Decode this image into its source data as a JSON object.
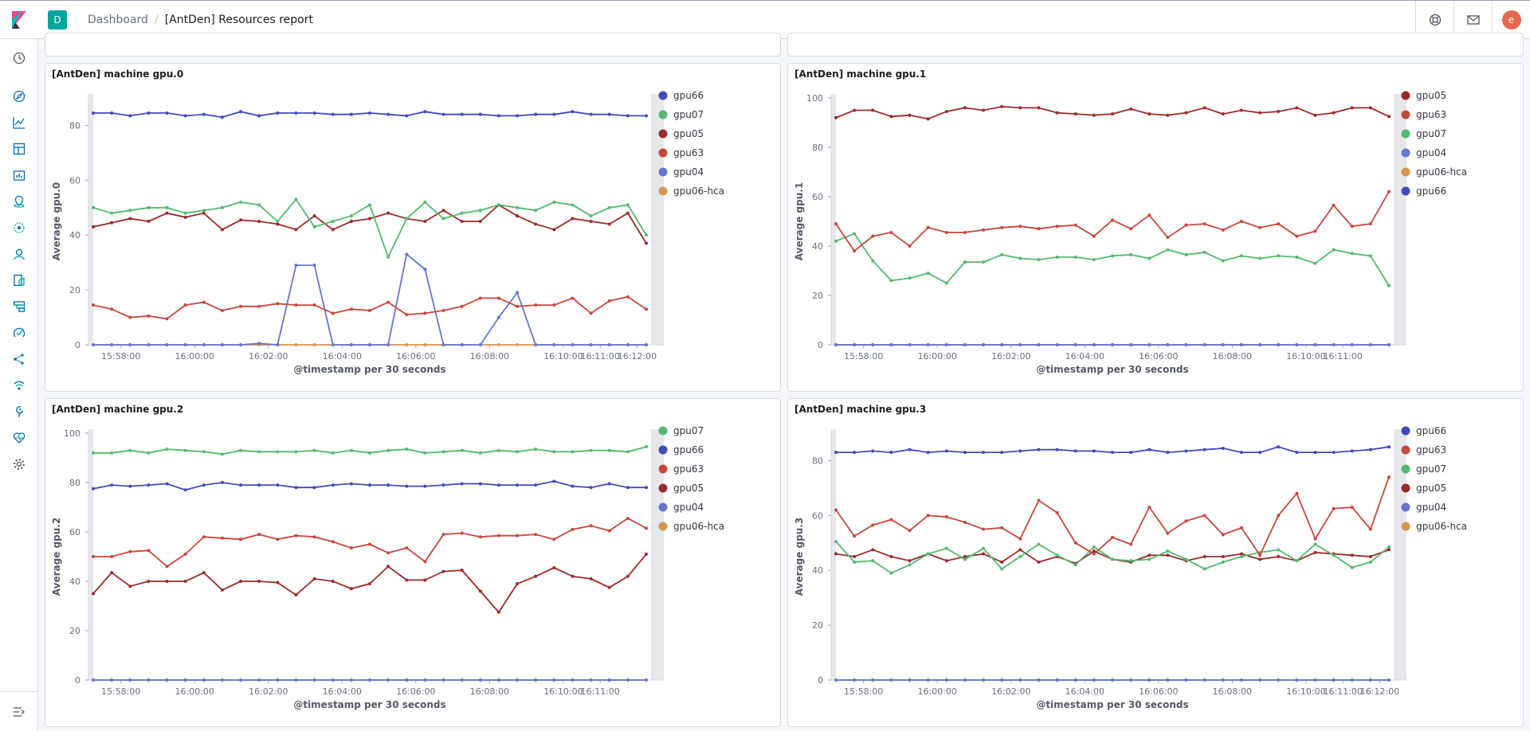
{
  "header": {
    "space_initial": "D",
    "breadcrumb_root": "Dashboard",
    "breadcrumb_current": "[AntDen] Resources report",
    "user_initial": "e"
  },
  "colors": {
    "gpu66": "#3f4bb8",
    "gpu07": "#54b96f",
    "gpu05": "#9c2a2a",
    "gpu63": "#c8473b",
    "gpu04": "#6377d0",
    "gpu06-hca": "#d6954e"
  },
  "chart_data": [
    {
      "type": "line",
      "title": "[AntDen] machine gpu.0",
      "ylabel": "Average gpu.0",
      "xlabel": "@timestamp per 30 seconds",
      "ylim": [
        0,
        90
      ],
      "yticks": [
        0,
        20,
        40,
        60,
        80
      ],
      "xticks": [
        {
          "t": 1.5,
          "label": "15:58:00"
        },
        {
          "t": 5.5,
          "label": "16:00:00"
        },
        {
          "t": 9.5,
          "label": "16:02:00"
        },
        {
          "t": 13.5,
          "label": "16:04:00"
        },
        {
          "t": 17.5,
          "label": "16:06:00"
        },
        {
          "t": 21.5,
          "label": "16:08:00"
        },
        {
          "t": 25.5,
          "label": "16:10:00"
        },
        {
          "t": 27.5,
          "label": "16:11:00"
        },
        {
          "t": 29.5,
          "label": "16:12:00"
        }
      ],
      "series": [
        {
          "name": "gpu66",
          "values": [
            84.5,
            84.5,
            83.5,
            84.5,
            84.5,
            83.5,
            84,
            83,
            85,
            83.5,
            84.5,
            84.5,
            84.5,
            84,
            84,
            84.5,
            84,
            83.5,
            85,
            84,
            84,
            84,
            83.5,
            83.5,
            84,
            84,
            85,
            84,
            84,
            83.5,
            83.5
          ]
        },
        {
          "name": "gpu07",
          "values": [
            50,
            48,
            49,
            50,
            50,
            48,
            49,
            50,
            52,
            51,
            45,
            53,
            43,
            45,
            47,
            51,
            32,
            46,
            52,
            46,
            48,
            49,
            51,
            50,
            49,
            52,
            51,
            47,
            50,
            51,
            40
          ]
        },
        {
          "name": "gpu05",
          "values": [
            43,
            44.5,
            46,
            45,
            48,
            46.5,
            48,
            42,
            45.5,
            45,
            44,
            42,
            47,
            42,
            45,
            46,
            48,
            46,
            45,
            49,
            45,
            45,
            51,
            47,
            44,
            42,
            46,
            45,
            44,
            48,
            37
          ]
        },
        {
          "name": "gpu63",
          "values": [
            14.5,
            13,
            10,
            10.5,
            9.5,
            14.5,
            15.5,
            12.5,
            14,
            14,
            15,
            14.5,
            14.5,
            11.5,
            13,
            12.5,
            15.5,
            11,
            11.5,
            12.5,
            14,
            17,
            17,
            14,
            14.5,
            14.5,
            17,
            11.5,
            16,
            17.5,
            13
          ]
        },
        {
          "name": "gpu04",
          "values": [
            0,
            0,
            0,
            0,
            0,
            0,
            0,
            0,
            0,
            0.5,
            0,
            29,
            29,
            0,
            0,
            0,
            0,
            33,
            27.5,
            0,
            0,
            0,
            10,
            19,
            0,
            0,
            0,
            0,
            0,
            0,
            0
          ]
        },
        {
          "name": "gpu06-hca",
          "values": [
            0,
            0,
            0,
            0,
            0,
            0,
            0,
            0,
            0,
            0,
            0,
            0,
            0,
            0,
            0,
            0,
            0,
            0,
            0,
            0,
            0,
            0,
            0,
            0,
            0,
            0,
            0,
            0,
            0,
            0,
            0
          ]
        }
      ]
    },
    {
      "type": "line",
      "title": "[AntDen] machine gpu.1",
      "ylabel": "Average gpu.1",
      "xlabel": "@timestamp per 30 seconds",
      "ylim": [
        0,
        100
      ],
      "yticks": [
        0,
        20,
        40,
        60,
        80,
        100
      ],
      "xticks": [
        {
          "t": 1.5,
          "label": "15:58:00"
        },
        {
          "t": 5.5,
          "label": "16:00:00"
        },
        {
          "t": 9.5,
          "label": "16:02:00"
        },
        {
          "t": 13.5,
          "label": "16:04:00"
        },
        {
          "t": 17.5,
          "label": "16:06:00"
        },
        {
          "t": 21.5,
          "label": "16:08:00"
        },
        {
          "t": 25.5,
          "label": "16:10:00"
        },
        {
          "t": 27.5,
          "label": "16:11:00"
        }
      ],
      "series": [
        {
          "name": "gpu05",
          "values": [
            92,
            95,
            95,
            92.5,
            93,
            91.5,
            94.5,
            96,
            95,
            96.5,
            96,
            96,
            94,
            93.5,
            93,
            93.5,
            95.5,
            93.5,
            93,
            94,
            96,
            93.5,
            95,
            94,
            94.5,
            96,
            93,
            94,
            96,
            96,
            92.5
          ]
        },
        {
          "name": "gpu63",
          "values": [
            49,
            38,
            44,
            45.5,
            40,
            47.5,
            45.5,
            45.5,
            46.5,
            47.5,
            48,
            47,
            48,
            48.5,
            44,
            50.5,
            47,
            52.5,
            43.5,
            48.5,
            49,
            46.5,
            50,
            47.5,
            49,
            44,
            46,
            56.5,
            48,
            49,
            62
          ]
        },
        {
          "name": "gpu07",
          "values": [
            42,
            45,
            34,
            26,
            27,
            29,
            25,
            33.5,
            33.5,
            36.5,
            35,
            34.5,
            35.5,
            35.5,
            34.5,
            36,
            36.5,
            35,
            38.5,
            36.5,
            37.5,
            34,
            36,
            35,
            36,
            35.5,
            33,
            38.5,
            37,
            36,
            24
          ]
        },
        {
          "name": "gpu04",
          "values": [
            0,
            0,
            0,
            0,
            0,
            0,
            0,
            0,
            0,
            0,
            0,
            0,
            0,
            0,
            0,
            0,
            0,
            0,
            0,
            0,
            0,
            0,
            0,
            0,
            0,
            0,
            0,
            0,
            0,
            0,
            0
          ]
        },
        {
          "name": "gpu06-hca",
          "values": [
            0,
            0,
            0,
            0,
            0,
            0,
            0,
            0,
            0,
            0,
            0,
            0,
            0,
            0,
            0,
            0,
            0,
            0,
            0,
            0,
            0,
            0,
            0,
            0,
            0,
            0,
            0,
            0,
            0,
            0,
            0
          ]
        },
        {
          "name": "gpu66",
          "values": [
            0,
            0,
            0,
            0,
            0,
            0,
            0,
            0,
            0,
            0,
            0,
            0,
            0,
            0,
            0,
            0,
            0,
            0,
            0,
            0,
            0,
            0,
            0,
            0,
            0,
            0,
            0,
            0,
            0,
            0,
            0
          ]
        }
      ]
    },
    {
      "type": "line",
      "title": "[AntDen] machine gpu.2",
      "ylabel": "Average gpu.2",
      "xlabel": "@timestamp per 30 seconds",
      "ylim": [
        0,
        100
      ],
      "yticks": [
        0,
        20,
        40,
        60,
        80,
        100
      ],
      "xticks": [
        {
          "t": 1.5,
          "label": "15:58:00"
        },
        {
          "t": 5.5,
          "label": "16:00:00"
        },
        {
          "t": 9.5,
          "label": "16:02:00"
        },
        {
          "t": 13.5,
          "label": "16:04:00"
        },
        {
          "t": 17.5,
          "label": "16:06:00"
        },
        {
          "t": 21.5,
          "label": "16:08:00"
        },
        {
          "t": 25.5,
          "label": "16:10:00"
        },
        {
          "t": 27.5,
          "label": "16:11:00"
        }
      ],
      "series": [
        {
          "name": "gpu07",
          "values": [
            92,
            92,
            93,
            92,
            93.5,
            93,
            92.5,
            91.5,
            93,
            92.5,
            92.5,
            92.5,
            93,
            92,
            93,
            92,
            93,
            93.5,
            92,
            92.5,
            93,
            92,
            93,
            92.5,
            93.5,
            92.5,
            92.5,
            93,
            93,
            92.5,
            94.5
          ]
        },
        {
          "name": "gpu66",
          "values": [
            77.5,
            79,
            78.5,
            79,
            79.5,
            77,
            79,
            80,
            79,
            79,
            79,
            78,
            78,
            79,
            79.5,
            79,
            79,
            78.5,
            78.5,
            79,
            79.5,
            79.5,
            79,
            79,
            79,
            80.5,
            78.5,
            78,
            79.5,
            78,
            78
          ]
        },
        {
          "name": "gpu63",
          "values": [
            50,
            50,
            52,
            52.5,
            46,
            51,
            58,
            57.5,
            57,
            59,
            57,
            58.5,
            58,
            56,
            53.5,
            55,
            51.5,
            53.5,
            48,
            59,
            59.5,
            58,
            58.5,
            58.5,
            59,
            57,
            61,
            62.5,
            60.5,
            65.5,
            61.5
          ]
        },
        {
          "name": "gpu05",
          "values": [
            35,
            43.5,
            38,
            40,
            40,
            40,
            43.5,
            36.5,
            40,
            40,
            39.5,
            34.5,
            41,
            40,
            37,
            39,
            46,
            40.5,
            40.5,
            44,
            44.5,
            36,
            27.5,
            39,
            42,
            45.5,
            42,
            41,
            37.5,
            42,
            51
          ]
        },
        {
          "name": "gpu04",
          "values": [
            0,
            0,
            0,
            0,
            0,
            0,
            0,
            0,
            0,
            0,
            0,
            0,
            0,
            0,
            0,
            0,
            0,
            0,
            0,
            0,
            0,
            0,
            0,
            0,
            0,
            0,
            0,
            0,
            0,
            0,
            0
          ]
        },
        {
          "name": "gpu06-hca",
          "values": [
            0,
            0,
            0,
            0,
            0,
            0,
            0,
            0,
            0,
            0,
            0,
            0,
            0,
            0,
            0,
            0,
            0,
            0,
            0,
            0,
            0,
            0,
            0,
            0,
            0,
            0,
            0,
            0,
            0,
            0,
            0
          ]
        }
      ]
    },
    {
      "type": "line",
      "title": "[AntDen] machine gpu.3",
      "ylabel": "Average gpu.3",
      "xlabel": "@timestamp per 30 seconds",
      "ylim": [
        0,
        90
      ],
      "yticks": [
        0,
        20,
        40,
        60,
        80
      ],
      "xticks": [
        {
          "t": 1.5,
          "label": "15:58:00"
        },
        {
          "t": 5.5,
          "label": "16:00:00"
        },
        {
          "t": 9.5,
          "label": "16:02:00"
        },
        {
          "t": 13.5,
          "label": "16:04:00"
        },
        {
          "t": 17.5,
          "label": "16:06:00"
        },
        {
          "t": 21.5,
          "label": "16:08:00"
        },
        {
          "t": 25.5,
          "label": "16:10:00"
        },
        {
          "t": 27.5,
          "label": "16:11:00"
        },
        {
          "t": 29.5,
          "label": "16:12:00"
        }
      ],
      "series": [
        {
          "name": "gpu66",
          "values": [
            83,
            83,
            83.5,
            83,
            84,
            83,
            83.5,
            83,
            83,
            83,
            83.5,
            84,
            84,
            83.5,
            83.5,
            83,
            83,
            84,
            83,
            83.5,
            84,
            84.5,
            83,
            83,
            85,
            83,
            83,
            83,
            83.5,
            84,
            85
          ]
        },
        {
          "name": "gpu63",
          "values": [
            62,
            52.5,
            56.5,
            58.5,
            54.5,
            60,
            59.5,
            57.5,
            55,
            55.5,
            51.5,
            65.5,
            61,
            50,
            46,
            52,
            49.5,
            63,
            53.5,
            58,
            60,
            53,
            55.5,
            45.5,
            60,
            68,
            51.5,
            62.5,
            63,
            55,
            74
          ]
        },
        {
          "name": "gpu07",
          "values": [
            50.5,
            43,
            43.5,
            39,
            42,
            46,
            48,
            44,
            48,
            40.5,
            45,
            49.5,
            45.5,
            42,
            48.5,
            44,
            43.5,
            44,
            47,
            44,
            40.5,
            43,
            45,
            46.5,
            47.5,
            43.5,
            49.5,
            45.5,
            41,
            43,
            48.5
          ]
        },
        {
          "name": "gpu05",
          "values": [
            46,
            45,
            47.5,
            45,
            43.5,
            46,
            43.5,
            45,
            46,
            43,
            47.5,
            43,
            45,
            42.5,
            47,
            44,
            43,
            45.5,
            45.5,
            43.5,
            45,
            45,
            46,
            44,
            45,
            43.5,
            46.5,
            46,
            45.5,
            45,
            47.5
          ]
        },
        {
          "name": "gpu04",
          "values": [
            0,
            0,
            0,
            0,
            0,
            0,
            0,
            0,
            0,
            0,
            0,
            0,
            0,
            0,
            0,
            0,
            0,
            0,
            0,
            0,
            0,
            0,
            0,
            0,
            0,
            0,
            0,
            0,
            0,
            0,
            0
          ]
        },
        {
          "name": "gpu06-hca",
          "values": [
            0,
            0,
            0,
            0,
            0,
            0,
            0,
            0,
            0,
            0,
            0,
            0,
            0,
            0,
            0,
            0,
            0,
            0,
            0,
            0,
            0,
            0,
            0,
            0,
            0,
            0,
            0,
            0,
            0,
            0,
            0
          ]
        }
      ]
    }
  ]
}
